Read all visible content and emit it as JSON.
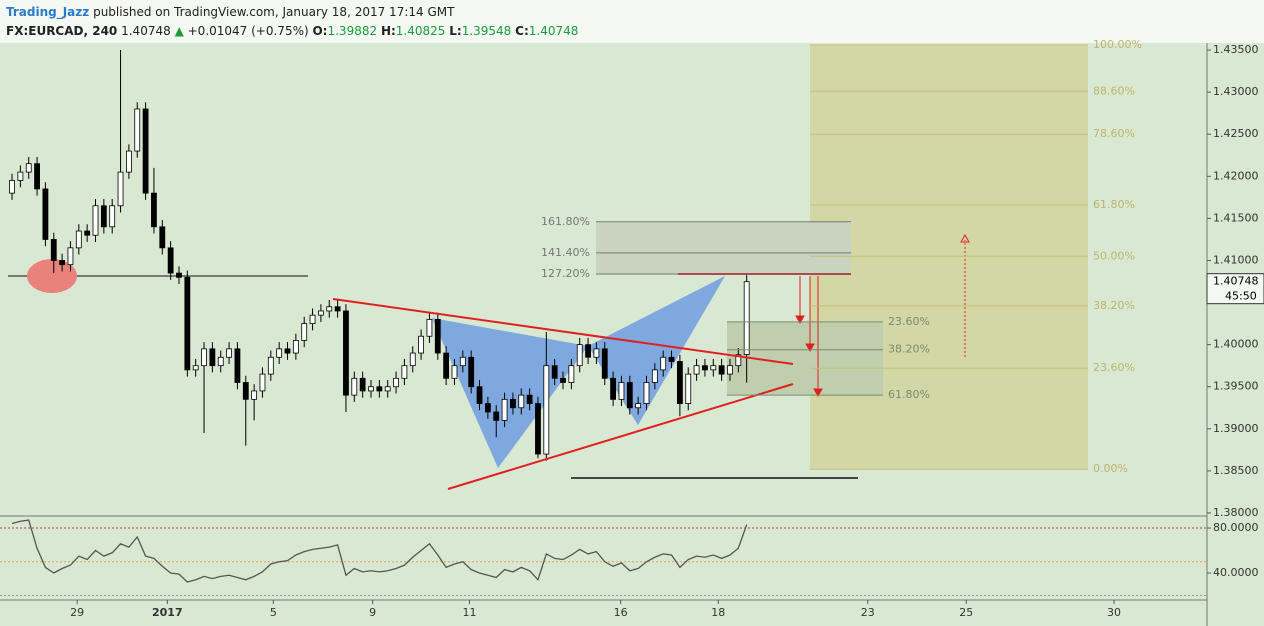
{
  "header": {
    "author": "Trading_Jazz",
    "published": "published on TradingView.com, January 18, 2017 17:14 GMT",
    "symbol": "FX:EURCAD, 240",
    "change": "+0.01047 (+0.75%)",
    "o_label": "O:",
    "h_label": "H:",
    "l_label": "L:",
    "c_label": "C:"
  },
  "chart_data": {
    "type": "candlestick",
    "candles": [
      [
        1.418,
        1.4203,
        1.4172,
        1.4195
      ],
      [
        1.4195,
        1.4213,
        1.4187,
        1.4205
      ],
      [
        1.4205,
        1.4223,
        1.4197,
        1.4215
      ],
      [
        1.4215,
        1.4223,
        1.4177,
        1.4185
      ],
      [
        1.4185,
        1.4193,
        1.4117,
        1.4125
      ],
      [
        1.4125,
        1.4133,
        1.4085,
        1.41
      ],
      [
        1.41,
        1.4108,
        1.4087,
        1.4095
      ],
      [
        1.4095,
        1.4123,
        1.4087,
        1.4115
      ],
      [
        1.4115,
        1.4143,
        1.4107,
        1.4135
      ],
      [
        1.4135,
        1.4143,
        1.4122,
        1.413
      ],
      [
        1.413,
        1.4173,
        1.4122,
        1.4165
      ],
      [
        1.4165,
        1.4173,
        1.4132,
        1.414
      ],
      [
        1.414,
        1.4173,
        1.4132,
        1.4165
      ],
      [
        1.4165,
        1.435,
        1.4157,
        1.4205
      ],
      [
        1.4205,
        1.4238,
        1.4197,
        1.423
      ],
      [
        1.423,
        1.4288,
        1.4222,
        1.428
      ],
      [
        1.428,
        1.4288,
        1.4172,
        1.418
      ],
      [
        1.418,
        1.421,
        1.4132,
        1.414
      ],
      [
        1.414,
        1.4148,
        1.4107,
        1.4115
      ],
      [
        1.4115,
        1.4123,
        1.4077,
        1.4085
      ],
      [
        1.4085,
        1.4093,
        1.4072,
        1.408
      ],
      [
        1.408,
        1.4088,
        1.3962,
        1.397
      ],
      [
        1.397,
        1.3983,
        1.3962,
        1.3975
      ],
      [
        1.3975,
        1.4003,
        1.3895,
        1.3995
      ],
      [
        1.3995,
        1.4003,
        1.3967,
        1.3975
      ],
      [
        1.3975,
        1.3993,
        1.3967,
        1.3985
      ],
      [
        1.3985,
        1.4003,
        1.3977,
        1.3995
      ],
      [
        1.3995,
        1.4003,
        1.3947,
        1.3955
      ],
      [
        1.3955,
        1.3963,
        1.388,
        1.3935
      ],
      [
        1.3935,
        1.3953,
        1.391,
        1.3945
      ],
      [
        1.3945,
        1.3973,
        1.3937,
        1.3965
      ],
      [
        1.3965,
        1.3993,
        1.3957,
        1.3985
      ],
      [
        1.3985,
        1.4003,
        1.3977,
        1.3995
      ],
      [
        1.3995,
        1.4003,
        1.3982,
        1.399
      ],
      [
        1.399,
        1.4013,
        1.3982,
        1.4005
      ],
      [
        1.4005,
        1.4033,
        1.3997,
        1.4025
      ],
      [
        1.4025,
        1.4043,
        1.4017,
        1.4035
      ],
      [
        1.4035,
        1.4048,
        1.4027,
        1.404
      ],
      [
        1.404,
        1.4053,
        1.4032,
        1.4045
      ],
      [
        1.4045,
        1.4053,
        1.4032,
        1.404
      ],
      [
        1.404,
        1.4048,
        1.392,
        1.394
      ],
      [
        1.394,
        1.3968,
        1.3932,
        1.396
      ],
      [
        1.396,
        1.3968,
        1.3937,
        1.3945
      ],
      [
        1.3945,
        1.3958,
        1.3937,
        1.395
      ],
      [
        1.395,
        1.3958,
        1.3937,
        1.3945
      ],
      [
        1.3945,
        1.3958,
        1.3937,
        1.395
      ],
      [
        1.395,
        1.3968,
        1.3942,
        1.396
      ],
      [
        1.396,
        1.3983,
        1.3952,
        1.3975
      ],
      [
        1.3975,
        1.3998,
        1.3967,
        1.399
      ],
      [
        1.399,
        1.4018,
        1.3982,
        1.401
      ],
      [
        1.401,
        1.4038,
        1.4002,
        1.403
      ],
      [
        1.403,
        1.4038,
        1.3982,
        1.399
      ],
      [
        1.399,
        1.3998,
        1.3952,
        1.396
      ],
      [
        1.396,
        1.3983,
        1.3952,
        1.3975
      ],
      [
        1.3975,
        1.3993,
        1.3967,
        1.3985
      ],
      [
        1.3985,
        1.3993,
        1.3942,
        1.395
      ],
      [
        1.395,
        1.3958,
        1.3922,
        1.393
      ],
      [
        1.393,
        1.3938,
        1.3912,
        1.392
      ],
      [
        1.392,
        1.3928,
        1.389,
        1.391
      ],
      [
        1.391,
        1.3943,
        1.3902,
        1.3935
      ],
      [
        1.3935,
        1.3943,
        1.3917,
        1.3925
      ],
      [
        1.3925,
        1.3948,
        1.3917,
        1.394
      ],
      [
        1.394,
        1.3948,
        1.3922,
        1.393
      ],
      [
        1.393,
        1.3938,
        1.3865,
        1.387
      ],
      [
        1.387,
        1.4015,
        1.3862,
        1.3975
      ],
      [
        1.3975,
        1.3983,
        1.3952,
        1.396
      ],
      [
        1.396,
        1.3968,
        1.3947,
        1.3955
      ],
      [
        1.3955,
        1.3983,
        1.3947,
        1.3975
      ],
      [
        1.3975,
        1.4008,
        1.3967,
        1.4
      ],
      [
        1.4,
        1.4008,
        1.3977,
        1.3985
      ],
      [
        1.3985,
        1.4003,
        1.3977,
        1.3995
      ],
      [
        1.3995,
        1.4003,
        1.3952,
        1.396
      ],
      [
        1.396,
        1.3968,
        1.3927,
        1.3935
      ],
      [
        1.3935,
        1.3963,
        1.3927,
        1.3955
      ],
      [
        1.3955,
        1.3963,
        1.3917,
        1.3925
      ],
      [
        1.3925,
        1.3938,
        1.3917,
        1.393
      ],
      [
        1.393,
        1.3963,
        1.3922,
        1.3955
      ],
      [
        1.3955,
        1.3978,
        1.3947,
        1.397
      ],
      [
        1.397,
        1.3993,
        1.3962,
        1.3985
      ],
      [
        1.3985,
        1.3993,
        1.3972,
        1.398
      ],
      [
        1.398,
        1.3988,
        1.3915,
        1.393
      ],
      [
        1.393,
        1.3973,
        1.3922,
        1.3965
      ],
      [
        1.3965,
        1.3983,
        1.3957,
        1.3975
      ],
      [
        1.3975,
        1.3983,
        1.3962,
        1.397
      ],
      [
        1.397,
        1.3983,
        1.3962,
        1.3975
      ],
      [
        1.3975,
        1.3983,
        1.3957,
        1.3965
      ],
      [
        1.3965,
        1.3983,
        1.3957,
        1.3975
      ],
      [
        1.3975,
        1.3996,
        1.3967,
        1.3988
      ],
      [
        1.39882,
        1.40825,
        1.39548,
        1.40748
      ]
    ],
    "up_color": "#ffffff",
    "down_color": "#000000",
    "xlim": [
      -1.44,
      142.9
    ],
    "xticks": [
      {
        "value": 7.8,
        "label": "29"
      },
      {
        "value": 18.6,
        "label": "2017"
      },
      {
        "value": 31.3,
        "label": "5"
      },
      {
        "value": 43.2,
        "label": "9"
      },
      {
        "value": 54.8,
        "label": "11"
      },
      {
        "value": 72.9,
        "label": "16"
      },
      {
        "value": 84.6,
        "label": "18"
      },
      {
        "value": 102.5,
        "label": "23"
      },
      {
        "value": 114.3,
        "label": "25"
      },
      {
        "value": 132,
        "label": "30"
      }
    ],
    "ylim": [
      1.37976,
      1.4356
    ],
    "yticks": [
      {
        "value": 1.435,
        "label": "1.43500"
      },
      {
        "value": 1.43,
        "label": "1.43000"
      },
      {
        "value": 1.425,
        "label": "1.42500"
      },
      {
        "value": 1.42,
        "label": "1.42000"
      },
      {
        "value": 1.415,
        "label": "1.41500"
      },
      {
        "value": 1.41,
        "label": "1.41000"
      },
      {
        "value": 1.4,
        "label": "1.40000"
      },
      {
        "value": 1.395,
        "label": "1.39500"
      },
      {
        "value": 1.39,
        "label": "1.39000"
      },
      {
        "value": 1.385,
        "label": "1.38500"
      },
      {
        "value": 1.38,
        "label": "1.38000"
      }
    ],
    "countdown": "45:50",
    "fib_zone": [
      {
        "value": 1.4356,
        "label": "100.00%"
      },
      {
        "value": 1.4301,
        "label": "88.60%"
      },
      {
        "value": 1.425,
        "label": "78.60%"
      },
      {
        "value": 1.4166,
        "label": "61.80%"
      },
      {
        "value": 1.4105,
        "label": "50.00%"
      },
      {
        "value": 1.4046,
        "label": "38.20%"
      },
      {
        "value": 1.3972,
        "label": "23.60%"
      },
      {
        "value": 1.3852,
        "label": "0.00%"
      }
    ],
    "fib_extension": [
      {
        "value": 1.4146,
        "label": "161.80%"
      },
      {
        "value": 1.4109,
        "label": "141.40%"
      },
      {
        "value": 1.4084,
        "label": "127.20%"
      }
    ],
    "fib_retracement": [
      {
        "value": 1.4027,
        "label": "23.60%"
      },
      {
        "value": 1.3994,
        "label": "38.20%"
      },
      {
        "value": 1.394,
        "label": "61.80%"
      }
    ],
    "rsi": [
      84,
      86,
      87,
      62,
      45,
      40,
      44,
      47,
      55,
      52,
      60,
      55,
      58,
      66,
      63,
      72,
      55,
      53,
      46,
      40,
      39,
      32,
      34,
      37,
      35,
      37,
      38,
      36,
      34,
      37,
      41,
      48,
      50,
      51,
      56,
      59,
      61,
      62,
      63,
      65,
      38,
      44,
      41,
      42,
      41,
      42,
      44,
      47,
      54,
      60,
      66,
      56,
      45,
      48,
      50,
      43,
      40,
      38,
      36,
      43,
      41,
      45,
      42,
      34,
      57,
      53,
      52,
      56,
      61,
      57,
      59,
      50,
      46,
      49,
      42,
      44,
      50,
      54,
      57,
      56,
      45,
      52,
      55,
      54,
      56,
      53,
      56,
      62,
      83
    ],
    "rsi_color": "#555555",
    "rsi_lim": [
      16,
      89.8
    ],
    "rsi_yticks": [
      {
        "value": 80,
        "label": "80.0000"
      },
      {
        "value": 40,
        "label": "40.0000"
      }
    ],
    "rsi_levels": [
      80,
      50,
      20
    ],
    "rsi_level_colors": [
      "#c0392b",
      "#e0a050",
      "#999999"
    ]
  }
}
